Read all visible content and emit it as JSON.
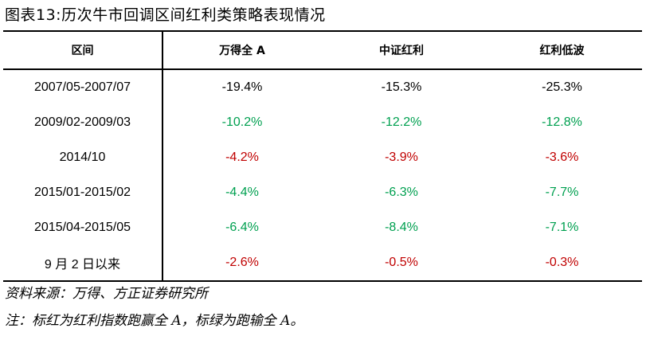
{
  "title": "图表13:历次牛市回调区间红利类策略表现情况",
  "table": {
    "headers": [
      "区间",
      "万得全 A",
      "中证红利",
      "红利低波"
    ],
    "rows": [
      {
        "period": "2007/05-2007/07",
        "cells": [
          {
            "value": "-19.4%",
            "tone": "plain"
          },
          {
            "value": "-15.3%",
            "tone": "plain"
          },
          {
            "value": "-25.3%",
            "tone": "plain"
          }
        ]
      },
      {
        "period": "2009/02-2009/03",
        "cells": [
          {
            "value": "-10.2%",
            "tone": "neg"
          },
          {
            "value": "-12.2%",
            "tone": "neg"
          },
          {
            "value": "-12.8%",
            "tone": "neg"
          }
        ]
      },
      {
        "period": "2014/10",
        "cells": [
          {
            "value": "-4.2%",
            "tone": "pos"
          },
          {
            "value": "-3.9%",
            "tone": "pos"
          },
          {
            "value": "-3.6%",
            "tone": "pos"
          }
        ]
      },
      {
        "period": "2015/01-2015/02",
        "cells": [
          {
            "value": "-4.4%",
            "tone": "neg"
          },
          {
            "value": "-6.3%",
            "tone": "neg"
          },
          {
            "value": "-7.7%",
            "tone": "neg"
          }
        ]
      },
      {
        "period": "2015/04-2015/05",
        "cells": [
          {
            "value": "-6.4%",
            "tone": "neg"
          },
          {
            "value": "-8.4%",
            "tone": "neg"
          },
          {
            "value": "-7.1%",
            "tone": "neg"
          }
        ]
      },
      {
        "period": "9 月 2 日以来",
        "cells": [
          {
            "value": "-2.6%",
            "tone": "pos"
          },
          {
            "value": "-0.5%",
            "tone": "pos"
          },
          {
            "value": "-0.3%",
            "tone": "pos"
          }
        ]
      }
    ]
  },
  "colors": {
    "red": "#c00000",
    "green": "#00a050"
  },
  "source": "资料来源：万得、方正证券研究所",
  "note": "注：标红为红利指数跑赢全 A，标绿为跑输全 A。"
}
